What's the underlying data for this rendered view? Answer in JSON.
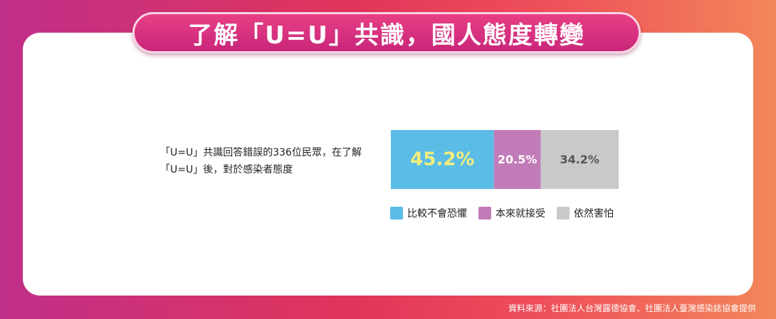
{
  "title": "了解「U=U」共識，國人態度轉變",
  "source": "資料來源：社團法人台灣露德協會、社團法人臺灣感染誌協會提供",
  "colors": {
    "series_blue": "#5bbde6",
    "series_purple": "#c27bb9",
    "series_gray": "#c9c9c9",
    "highlight_yellow": "#f3ee7d"
  },
  "chart_data": {
    "type": "bar",
    "orientation": "horizontal-stacked",
    "categories": [
      "「U=U」共識回答錯誤的336位民眾，在了解「U=U」後，對於感染者態度"
    ],
    "category_lines": [
      "「U=U」共識回答錯誤的336位民眾，在了解",
      "「U=U」後，對於感染者態度"
    ],
    "series": [
      {
        "name": "比較不會恐懼",
        "values": [
          45.2
        ],
        "label": "45.2%",
        "color": "#5bbde6",
        "label_color": "#f3ee7d"
      },
      {
        "name": "本來就接受",
        "values": [
          20.5
        ],
        "label": "20.5%",
        "color": "#c27bb9",
        "label_color": "#ffffff"
      },
      {
        "name": "依然害怕",
        "values": [
          34.2
        ],
        "label": "34.2%",
        "color": "#c9c9c9",
        "label_color": "#555555"
      }
    ],
    "legend_position": "bottom",
    "grid": false
  }
}
